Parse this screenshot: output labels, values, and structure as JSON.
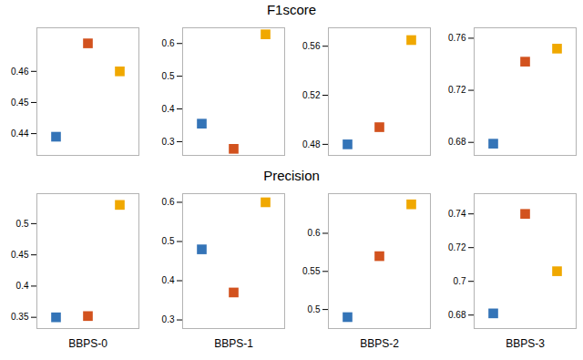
{
  "chart_data": [
    {
      "type": "scatter",
      "title": "F1score",
      "categories": [
        null,
        null,
        null
      ],
      "values": [
        0.439,
        0.469,
        0.46
      ],
      "colors": [
        "#3474b7",
        "#d2521e",
        "#f0a800"
      ],
      "marker": "square",
      "ylim": [
        0.433,
        0.474
      ],
      "yticks": [
        0.44,
        0.45,
        0.46
      ],
      "tick_labels": "y"
    },
    {
      "type": "scatter",
      "categories": [
        null,
        null,
        null
      ],
      "values": [
        0.355,
        0.278,
        0.628
      ],
      "colors": [
        "#3474b7",
        "#d2521e",
        "#f0a800"
      ],
      "marker": "square",
      "ylim": [
        0.258,
        0.648
      ],
      "yticks": [
        0.3,
        0.4,
        0.5,
        0.6
      ],
      "tick_labels": "y"
    },
    {
      "type": "scatter",
      "categories": [
        null,
        null,
        null
      ],
      "values": [
        0.48,
        0.494,
        0.565
      ],
      "colors": [
        "#3474b7",
        "#d2521e",
        "#f0a800"
      ],
      "marker": "square",
      "ylim": [
        0.471,
        0.575
      ],
      "yticks": [
        0.48,
        0.52,
        0.56
      ],
      "tick_labels": "y"
    },
    {
      "type": "scatter",
      "categories": [
        null,
        null,
        null
      ],
      "values": [
        0.679,
        0.742,
        0.752
      ],
      "colors": [
        "#3474b7",
        "#d2521e",
        "#f0a800"
      ],
      "marker": "square",
      "ylim": [
        0.67,
        0.768
      ],
      "yticks": [
        0.68,
        0.72,
        0.76
      ],
      "tick_labels": "y"
    },
    {
      "type": "scatter",
      "title": "Precision",
      "xlabel": "BBPS-0",
      "categories": [
        null,
        null,
        null
      ],
      "values": [
        0.35,
        0.352,
        0.53
      ],
      "colors": [
        "#3474b7",
        "#d2521e",
        "#f0a800"
      ],
      "marker": "square",
      "ylim": [
        0.332,
        0.548
      ],
      "yticks": [
        0.35,
        0.4,
        0.45,
        0.5
      ],
      "tick_labels": "y"
    },
    {
      "type": "scatter",
      "xlabel": "BBPS-1",
      "categories": [
        null,
        null,
        null
      ],
      "values": [
        0.48,
        0.37,
        0.6
      ],
      "colors": [
        "#3474b7",
        "#d2521e",
        "#f0a800"
      ],
      "marker": "square",
      "ylim": [
        0.278,
        0.622
      ],
      "yticks": [
        0.3,
        0.4,
        0.5,
        0.6
      ],
      "tick_labels": "y"
    },
    {
      "type": "scatter",
      "xlabel": "BBPS-2",
      "categories": [
        null,
        null,
        null
      ],
      "values": [
        0.49,
        0.57,
        0.638
      ],
      "colors": [
        "#3474b7",
        "#d2521e",
        "#f0a800"
      ],
      "marker": "square",
      "ylim": [
        0.475,
        0.652
      ],
      "yticks": [
        0.5,
        0.55,
        0.6
      ],
      "tick_labels": "y"
    },
    {
      "type": "scatter",
      "xlabel": "BBPS-3",
      "categories": [
        null,
        null,
        null
      ],
      "values": [
        0.681,
        0.74,
        0.706
      ],
      "colors": [
        "#3474b7",
        "#d2521e",
        "#f0a800"
      ],
      "marker": "square",
      "ylim": [
        0.672,
        0.752
      ],
      "yticks": [
        0.68,
        0.7,
        0.72,
        0.74
      ],
      "tick_labels": "y"
    }
  ]
}
